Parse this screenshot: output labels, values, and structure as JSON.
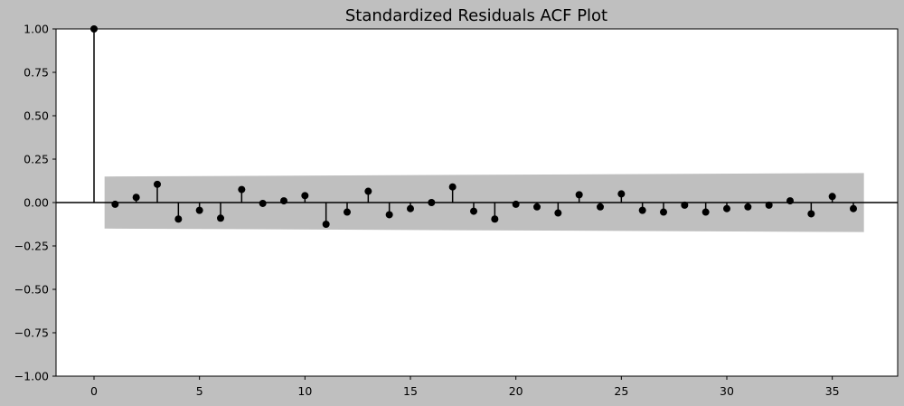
{
  "chart_data": {
    "type": "stem",
    "title": "Standardized Residuals ACF Plot",
    "xlabel": "",
    "ylabel": "",
    "xlim": [
      -1.8,
      38.1
    ],
    "ylim": [
      -1.0,
      1.0
    ],
    "xticks": [
      0,
      5,
      10,
      15,
      20,
      25,
      30,
      35
    ],
    "xtick_labels": [
      "0",
      "5",
      "10",
      "15",
      "20",
      "25",
      "30",
      "35"
    ],
    "yticks": [
      -1.0,
      -0.75,
      -0.5,
      -0.25,
      0.0,
      0.25,
      0.5,
      0.75,
      1.0
    ],
    "ytick_labels": [
      "−1.00",
      "−0.75",
      "−0.50",
      "−0.25",
      "0.00",
      "0.25",
      "0.50",
      "0.75",
      "1.00"
    ],
    "grid": false,
    "lags": [
      0,
      1,
      2,
      3,
      4,
      5,
      6,
      7,
      8,
      9,
      10,
      11,
      12,
      13,
      14,
      15,
      16,
      17,
      18,
      19,
      20,
      21,
      22,
      23,
      24,
      25,
      26,
      27,
      28,
      29,
      30,
      31,
      32,
      33,
      34,
      35,
      36
    ],
    "acf": [
      1.0,
      -0.01,
      0.03,
      0.105,
      -0.095,
      -0.045,
      -0.09,
      0.075,
      -0.005,
      0.01,
      0.04,
      -0.125,
      -0.055,
      0.065,
      -0.07,
      -0.035,
      0.0,
      0.09,
      -0.05,
      -0.095,
      -0.01,
      -0.025,
      -0.06,
      0.045,
      -0.025,
      0.05,
      -0.045,
      -0.055,
      -0.015,
      -0.055,
      -0.035,
      -0.025,
      -0.015,
      0.01,
      -0.065,
      0.035,
      -0.035
    ],
    "confidence_band": {
      "x": [
        0.5,
        36.5
      ],
      "upper": [
        0.15,
        0.17
      ],
      "lower": [
        -0.15,
        -0.17
      ]
    },
    "colors": {
      "stem": "#000000",
      "marker": "#000000",
      "band": "#bfbfbf",
      "plot_background": "#ffffff",
      "figure_background": "#bfbfbf"
    }
  }
}
